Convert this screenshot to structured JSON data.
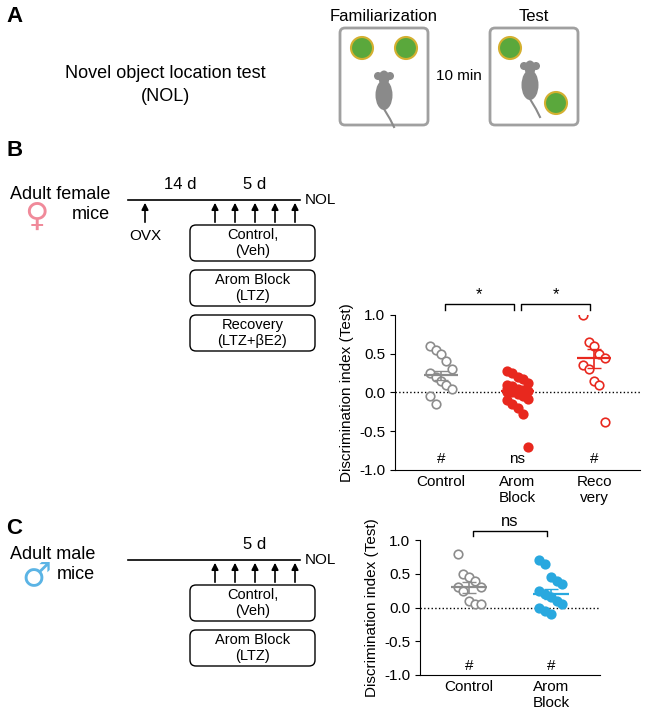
{
  "panels": {
    "A": {
      "label": "A",
      "title": "Novel object location test\n(NOL)",
      "phases": [
        "Familiarization",
        "Test"
      ],
      "interval": "10 min"
    },
    "B": {
      "label": "B",
      "subject": "Adult female\nmice",
      "symbol": "♀",
      "symbol_color": "#f08a9a",
      "timeline_labels": [
        "14 d",
        "5 d"
      ],
      "start_event": "OVX",
      "end_event": "NOL",
      "groups": [
        "Control,\n(Veh)",
        "Arom Block\n(LTZ)",
        "Recovery\n(LTZ+βE2)"
      ]
    },
    "C": {
      "label": "C",
      "subject": "Adult male\nmice",
      "symbol": "♂",
      "symbol_color": "#5bb4e5",
      "timeline_labels": [
        "5 d"
      ],
      "end_event": "NOL",
      "groups": [
        "Control,\n(Veh)",
        "Arom Block\n(LTZ)"
      ]
    }
  },
  "chart_data": [
    {
      "type": "strip",
      "panel": "B",
      "y_label": "Discrimination index (Test)",
      "ylim": [
        -1.0,
        1.0
      ],
      "yticks": [
        {
          "value": -1.0,
          "label": "-1.0"
        },
        {
          "value": -0.5,
          "label": "-0.5"
        },
        {
          "value": 0.0,
          "label": "0.0"
        },
        {
          "value": 0.5,
          "label": "0.5"
        },
        {
          "value": 1.0,
          "label": "1.0"
        }
      ],
      "reference_line": 0.0,
      "groups": [
        {
          "category": "Control",
          "color": "#8c8c8c",
          "marker": "open_circle",
          "values": [
            0.6,
            0.55,
            0.5,
            0.4,
            0.3,
            0.25,
            0.2,
            0.15,
            0.1,
            0.05,
            -0.05,
            -0.15
          ],
          "mean": 0.22,
          "sem": 0.06,
          "significance": "#"
        },
        {
          "category": "Arom\nBlock",
          "color": "#e8281e",
          "marker": "circle",
          "values": [
            0.28,
            0.25,
            0.2,
            0.18,
            0.12,
            0.1,
            0.08,
            0.05,
            0.03,
            0.02,
            0.0,
            0.0,
            -0.02,
            -0.05,
            -0.08,
            -0.1,
            -0.15,
            -0.2,
            -0.28,
            -0.7,
            0.04
          ],
          "mean": 0.02,
          "sem": 0.05,
          "significance": "ns"
        },
        {
          "category": "Reco\nvery",
          "color": "#e8281e",
          "marker": "open_circle",
          "values": [
            1.0,
            0.65,
            0.6,
            0.5,
            0.45,
            0.35,
            0.3,
            0.15,
            0.1,
            -0.38
          ],
          "mean": 0.44,
          "sem": 0.12,
          "significance": "#"
        }
      ],
      "comparisons": [
        {
          "from": "Control",
          "to": "Arom\nBlock",
          "label": "*"
        },
        {
          "from": "Arom\nBlock",
          "to": "Reco\nvery",
          "label": "*"
        }
      ]
    },
    {
      "type": "strip",
      "panel": "C",
      "y_label": "Discrimination index (Test)",
      "ylim": [
        -1.0,
        1.0
      ],
      "yticks": [
        {
          "value": -1.0,
          "label": "-1.0"
        },
        {
          "value": -0.5,
          "label": "-0.5"
        },
        {
          "value": 0.0,
          "label": "0.0"
        },
        {
          "value": 0.5,
          "label": "0.5"
        },
        {
          "value": 1.0,
          "label": "1.0"
        }
      ],
      "reference_line": 0.0,
      "groups": [
        {
          "category": "Control",
          "color": "#8c8c8c",
          "marker": "open_circle",
          "values": [
            0.8,
            0.5,
            0.45,
            0.4,
            0.3,
            0.3,
            0.25,
            0.1,
            0.05,
            0.05
          ],
          "mean": 0.3,
          "sem": 0.08,
          "significance": "#"
        },
        {
          "category": "Arom\nBlock",
          "color": "#29a8df",
          "marker": "circle",
          "values": [
            0.7,
            0.65,
            0.45,
            0.4,
            0.35,
            0.25,
            0.2,
            0.15,
            0.1,
            0.05,
            0.0,
            -0.05,
            -0.1
          ],
          "mean": 0.2,
          "sem": 0.07,
          "significance": "#"
        }
      ],
      "comparisons": [
        {
          "from": "Control",
          "to": "Arom\nBlock",
          "label": "ns"
        }
      ]
    }
  ]
}
